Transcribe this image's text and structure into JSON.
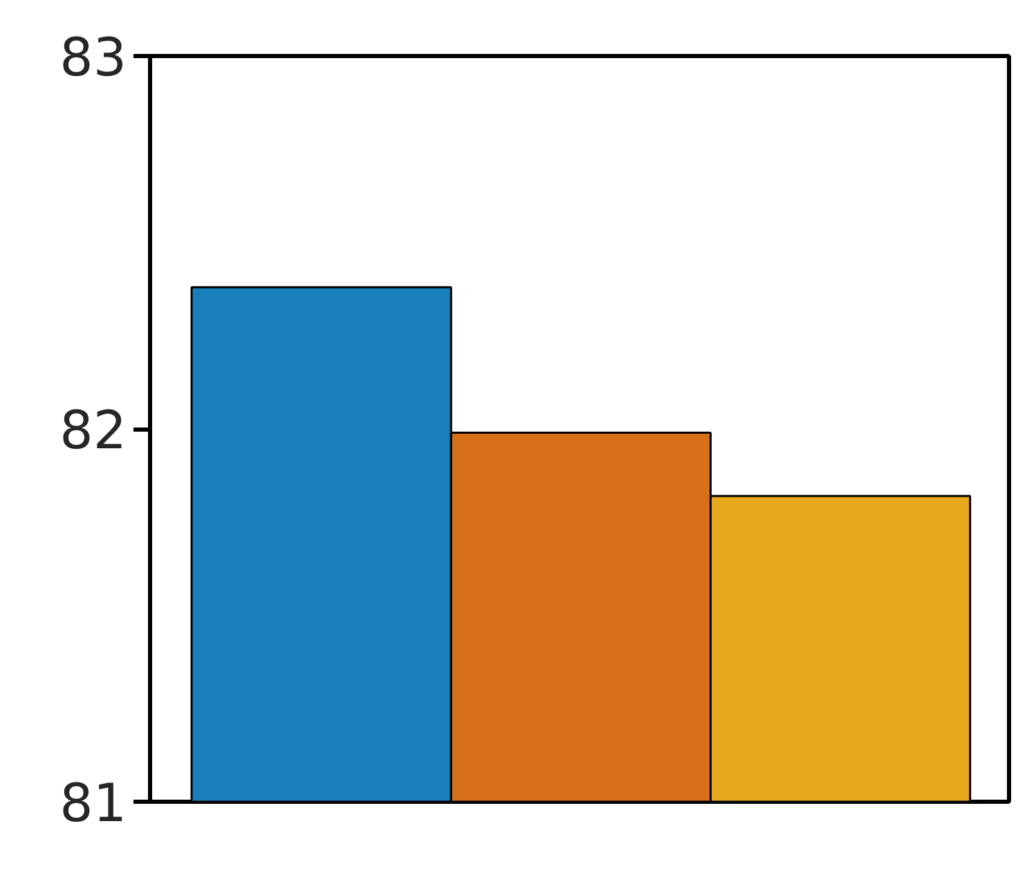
{
  "chart_data": {
    "type": "bar",
    "categories": [
      null,
      null,
      null
    ],
    "values": [
      82.38,
      81.99,
      81.82
    ],
    "colors": [
      "#1a80bb",
      "#d86f19",
      "#e8a81c"
    ],
    "ylim": [
      81,
      83
    ],
    "yticks": [
      81,
      82,
      83
    ],
    "grid": false
  }
}
